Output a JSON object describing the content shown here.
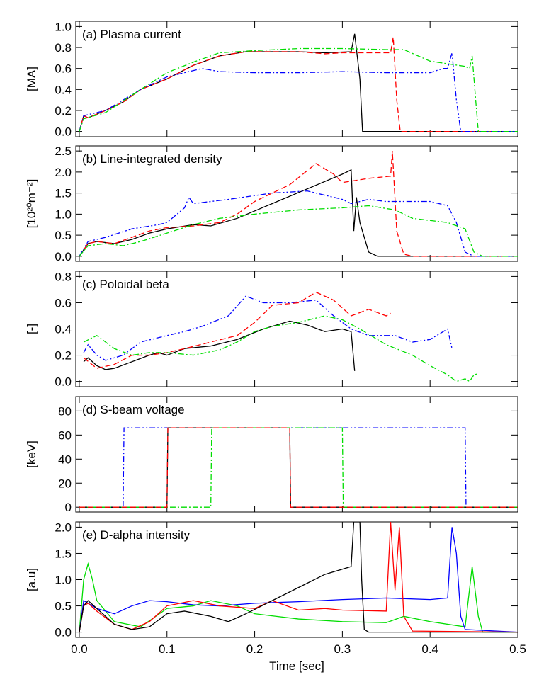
{
  "chart_data": [
    {
      "type": "line",
      "title": "(a) Plasma current",
      "ylabel": "[MA]",
      "xlim": [
        -0.004,
        0.5
      ],
      "xticks": [
        {
          "value": 0,
          "label": "0.0"
        },
        0.1,
        0.2,
        0.3,
        0.4,
        0.5
      ],
      "ylim": [
        -0.05,
        1.05
      ],
      "yticks": [
        {
          "value": 0,
          "label": "0.0"
        },
        0.2,
        0.4,
        0.6,
        0.8,
        {
          "value": 1,
          "label": "1.0"
        }
      ],
      "series": [
        {
          "color": "#000000",
          "style": "solid",
          "x": [
            0,
            0.005,
            0.01,
            0.03,
            0.05,
            0.07,
            0.1,
            0.13,
            0.16,
            0.19,
            0.22,
            0.25,
            0.28,
            0.31,
            0.314,
            0.32,
            0.323,
            0.33,
            0.5
          ],
          "values": [
            0,
            0.15,
            0.13,
            0.2,
            0.28,
            0.4,
            0.5,
            0.63,
            0.72,
            0.76,
            0.76,
            0.76,
            0.75,
            0.76,
            0.93,
            0.5,
            0,
            0,
            0
          ]
        },
        {
          "color": "#ff0000",
          "style": "dashed",
          "x": [
            0,
            0.005,
            0.01,
            0.03,
            0.05,
            0.07,
            0.1,
            0.13,
            0.16,
            0.19,
            0.22,
            0.25,
            0.28,
            0.3,
            0.355,
            0.358,
            0.362,
            0.366,
            0.5
          ],
          "values": [
            0,
            0.15,
            0.13,
            0.2,
            0.28,
            0.4,
            0.5,
            0.63,
            0.72,
            0.76,
            0.76,
            0.76,
            0.74,
            0.75,
            0.75,
            0.9,
            0.3,
            0,
            0
          ]
        },
        {
          "color": "#0000ff",
          "style": "dashdotdot",
          "x": [
            0,
            0.005,
            0.03,
            0.07,
            0.1,
            0.14,
            0.16,
            0.2,
            0.25,
            0.3,
            0.35,
            0.4,
            0.415,
            0.42,
            0.425,
            0.43,
            0.435,
            0.5
          ],
          "values": [
            0,
            0.15,
            0.2,
            0.4,
            0.52,
            0.6,
            0.57,
            0.56,
            0.56,
            0.57,
            0.56,
            0.56,
            0.6,
            0.6,
            0.75,
            0.3,
            0,
            0
          ]
        },
        {
          "color": "#00dd00",
          "style": "dashdot",
          "x": [
            0,
            0.005,
            0.03,
            0.07,
            0.1,
            0.13,
            0.16,
            0.2,
            0.25,
            0.3,
            0.35,
            0.37,
            0.4,
            0.44,
            0.445,
            0.448,
            0.452,
            0.455,
            0.5
          ],
          "values": [
            0,
            0.12,
            0.18,
            0.4,
            0.56,
            0.66,
            0.75,
            0.77,
            0.79,
            0.79,
            0.78,
            0.78,
            0.67,
            0.62,
            0.6,
            0.72,
            0.3,
            0,
            0
          ]
        }
      ]
    },
    {
      "type": "line",
      "title": "(b) Line-integrated density",
      "ylabel": "[10²⁰m⁻²]",
      "xlim": [
        -0.004,
        0.5
      ],
      "xticks": [
        {
          "value": 0,
          "label": "0.0"
        },
        0.1,
        0.2,
        0.3,
        0.4,
        0.5
      ],
      "ylim": [
        -0.12,
        2.62
      ],
      "yticks": [
        {
          "value": 0,
          "label": "0.0"
        },
        0.5,
        {
          "value": 1,
          "label": "1.0"
        },
        1.5,
        {
          "value": 2,
          "label": "2.0"
        },
        2.5
      ],
      "series": [
        {
          "color": "#000000",
          "style": "solid",
          "x": [
            0,
            0.01,
            0.02,
            0.04,
            0.06,
            0.08,
            0.1,
            0.13,
            0.15,
            0.18,
            0.22,
            0.26,
            0.3,
            0.31,
            0.313,
            0.316,
            0.32,
            0.33,
            0.34,
            0.5
          ],
          "values": [
            0,
            0.3,
            0.35,
            0.3,
            0.4,
            0.55,
            0.65,
            0.75,
            0.72,
            0.9,
            1.25,
            1.6,
            1.95,
            2.05,
            0.6,
            1.4,
            0.8,
            0.1,
            0,
            0
          ]
        },
        {
          "color": "#ff0000",
          "style": "dashed",
          "x": [
            0,
            0.01,
            0.02,
            0.04,
            0.06,
            0.08,
            0.1,
            0.13,
            0.16,
            0.18,
            0.2,
            0.24,
            0.27,
            0.29,
            0.3,
            0.33,
            0.355,
            0.357,
            0.362,
            0.37,
            0.38,
            0.5
          ],
          "values": [
            0,
            0.3,
            0.35,
            0.3,
            0.45,
            0.6,
            0.68,
            0.72,
            0.8,
            1,
            1.3,
            1.7,
            2.2,
            1.95,
            1.75,
            1.85,
            1.9,
            2.5,
            0.6,
            0.05,
            0,
            0
          ]
        },
        {
          "color": "#0000ff",
          "style": "dashdotdot",
          "x": [
            0,
            0.01,
            0.03,
            0.06,
            0.09,
            0.1,
            0.12,
            0.125,
            0.13,
            0.17,
            0.22,
            0.26,
            0.28,
            0.3,
            0.31,
            0.33,
            0.35,
            0.4,
            0.42,
            0.43,
            0.44,
            0.45,
            0.5
          ],
          "values": [
            0,
            0.35,
            0.45,
            0.65,
            0.75,
            0.8,
            1.15,
            1.4,
            1.25,
            1.35,
            1.5,
            1.55,
            1.45,
            1.35,
            1.25,
            1.35,
            1.3,
            1.3,
            1.2,
            0.8,
            0.1,
            0,
            0
          ]
        },
        {
          "color": "#00dd00",
          "style": "dashdot",
          "x": [
            0,
            0.01,
            0.03,
            0.05,
            0.07,
            0.1,
            0.13,
            0.16,
            0.2,
            0.25,
            0.3,
            0.33,
            0.36,
            0.38,
            0.42,
            0.44,
            0.45,
            0.46,
            0.5
          ],
          "values": [
            0,
            0.25,
            0.3,
            0.25,
            0.35,
            0.55,
            0.75,
            0.9,
            1,
            1.1,
            1.15,
            1.2,
            1.1,
            0.9,
            0.8,
            0.65,
            0.1,
            0,
            0
          ]
        }
      ]
    },
    {
      "type": "line",
      "title": "(c) Poloidal beta",
      "ylabel": "[-]",
      "xlim": [
        -0.004,
        0.5
      ],
      "xticks": [
        {
          "value": 0,
          "label": "0.0"
        },
        0.1,
        0.2,
        0.3,
        0.4,
        0.5
      ],
      "ylim": [
        -0.04,
        0.84
      ],
      "yticks": [
        {
          "value": 0,
          "label": "0.0"
        },
        0.2,
        0.4,
        0.6,
        0.8
      ],
      "series": [
        {
          "color": "#000000",
          "style": "solid",
          "x": [
            0.005,
            0.01,
            0.02,
            0.03,
            0.04,
            0.06,
            0.08,
            0.09,
            0.1,
            0.12,
            0.15,
            0.18,
            0.21,
            0.24,
            0.26,
            0.28,
            0.3,
            0.31,
            0.314
          ],
          "values": [
            0.15,
            0.18,
            0.12,
            0.09,
            0.1,
            0.15,
            0.2,
            0.22,
            0.2,
            0.25,
            0.27,
            0.32,
            0.4,
            0.46,
            0.43,
            0.38,
            0.4,
            0.38,
            0.08
          ]
        },
        {
          "color": "#ff0000",
          "style": "dashed",
          "x": [
            0.005,
            0.02,
            0.04,
            0.06,
            0.08,
            0.1,
            0.12,
            0.15,
            0.18,
            0.2,
            0.22,
            0.25,
            0.27,
            0.29,
            0.31,
            0.33,
            0.35,
            0.355
          ],
          "values": [
            0.18,
            0.1,
            0.13,
            0.2,
            0.2,
            0.22,
            0.25,
            0.3,
            0.35,
            0.45,
            0.58,
            0.6,
            0.68,
            0.62,
            0.5,
            0.55,
            0.5,
            0.52
          ]
        },
        {
          "color": "#0000ff",
          "style": "dashdotdot",
          "x": [
            0.005,
            0.01,
            0.02,
            0.03,
            0.05,
            0.07,
            0.1,
            0.12,
            0.14,
            0.17,
            0.19,
            0.21,
            0.24,
            0.27,
            0.29,
            0.31,
            0.33,
            0.36,
            0.38,
            0.4,
            0.42,
            0.425
          ],
          "values": [
            0.22,
            0.28,
            0.2,
            0.16,
            0.2,
            0.3,
            0.35,
            0.38,
            0.42,
            0.5,
            0.65,
            0.6,
            0.6,
            0.62,
            0.5,
            0.4,
            0.35,
            0.35,
            0.3,
            0.32,
            0.4,
            0.25
          ]
        },
        {
          "color": "#00dd00",
          "style": "dashdot",
          "x": [
            0.005,
            0.02,
            0.04,
            0.06,
            0.08,
            0.1,
            0.13,
            0.16,
            0.18,
            0.2,
            0.22,
            0.25,
            0.28,
            0.3,
            0.32,
            0.35,
            0.38,
            0.4,
            0.42,
            0.43,
            0.44,
            0.445,
            0.45,
            0.455
          ],
          "values": [
            0.3,
            0.35,
            0.25,
            0.2,
            0.22,
            0.22,
            0.2,
            0.24,
            0.3,
            0.38,
            0.42,
            0.45,
            0.5,
            0.47,
            0.4,
            0.28,
            0.2,
            0.12,
            0.05,
            0,
            0.02,
            0,
            0.05,
            0.06
          ]
        }
      ]
    },
    {
      "type": "line",
      "title": "(d) S-beam voltage",
      "ylabel": "[keV]",
      "xlim": [
        -0.004,
        0.5
      ],
      "xticks": [
        {
          "value": 0,
          "label": "0.0"
        },
        0.1,
        0.2,
        0.3,
        0.4,
        0.5
      ],
      "ylim": [
        -4,
        92
      ],
      "yticks": [
        0,
        20,
        40,
        60,
        80
      ],
      "series": [
        {
          "color": "#0000ff",
          "style": "dashdotdot",
          "x": [
            0,
            0.05,
            0.051,
            0.44,
            0.441,
            0.5
          ],
          "values": [
            0,
            0,
            66,
            66,
            0,
            0
          ]
        },
        {
          "color": "#000000",
          "style": "solid",
          "x": [
            0,
            0.1,
            0.101,
            0.24,
            0.241,
            0.5
          ],
          "values": [
            0,
            0,
            66,
            66,
            0,
            0
          ]
        },
        {
          "color": "#00dd00",
          "style": "dashdot",
          "x": [
            0,
            0.15,
            0.151,
            0.3,
            0.301,
            0.5
          ],
          "values": [
            0,
            0,
            66,
            66,
            0,
            0
          ]
        },
        {
          "color": "#ff0000",
          "style": "dashed",
          "x": [
            0,
            0.1,
            0.101,
            0.24,
            0.241,
            0.5
          ],
          "values": [
            0,
            0,
            66,
            66,
            0,
            0
          ]
        }
      ]
    },
    {
      "type": "line",
      "title": "(e) D-alpha intensity",
      "ylabel": "[a.u]",
      "xlabel": "Time [sec]",
      "xlim": [
        -0.004,
        0.5
      ],
      "xticks": [
        {
          "value": 0,
          "label": "0.0"
        },
        0.1,
        0.2,
        0.3,
        0.4,
        0.5
      ],
      "ylim": [
        -0.1,
        2.1
      ],
      "yticks": [
        {
          "value": 0,
          "label": "0.0"
        },
        0.5,
        {
          "value": 1,
          "label": "1.0"
        },
        1.5,
        {
          "value": 2,
          "label": "2.0"
        }
      ],
      "series": [
        {
          "color": "#00dd00",
          "style": "solid",
          "x": [
            0,
            0.005,
            0.01,
            0.015,
            0.02,
            0.04,
            0.07,
            0.1,
            0.13,
            0.15,
            0.18,
            0.2,
            0.25,
            0.3,
            0.35,
            0.37,
            0.4,
            0.44,
            0.448,
            0.455,
            0.46,
            0.5
          ],
          "values": [
            0,
            1,
            1.3,
            1,
            0.6,
            0.2,
            0.1,
            0.45,
            0.5,
            0.6,
            0.5,
            0.35,
            0.25,
            0.2,
            0.18,
            0.3,
            0.2,
            0.1,
            1.25,
            0.3,
            0,
            0
          ]
        },
        {
          "color": "#0000ff",
          "style": "solid",
          "x": [
            0,
            0.005,
            0.01,
            0.02,
            0.04,
            0.06,
            0.08,
            0.1,
            0.13,
            0.16,
            0.2,
            0.25,
            0.3,
            0.35,
            0.4,
            0.42,
            0.425,
            0.43,
            0.435,
            0.44,
            0.5
          ],
          "values": [
            0,
            0.6,
            0.55,
            0.45,
            0.35,
            0.5,
            0.6,
            0.58,
            0.52,
            0.5,
            0.55,
            0.58,
            0.62,
            0.65,
            0.62,
            0.65,
            2,
            1.5,
            0.3,
            0.05,
            0
          ]
        },
        {
          "color": "#ff0000",
          "style": "solid",
          "x": [
            0,
            0.005,
            0.01,
            0.02,
            0.04,
            0.06,
            0.08,
            0.1,
            0.13,
            0.16,
            0.2,
            0.22,
            0.25,
            0.28,
            0.3,
            0.35,
            0.355,
            0.36,
            0.365,
            0.37,
            0.38,
            0.5
          ],
          "values": [
            0,
            0.5,
            0.55,
            0.4,
            0.15,
            0.05,
            0.2,
            0.5,
            0.6,
            0.5,
            0.45,
            0.6,
            0.42,
            0.45,
            0.42,
            0.4,
            2.1,
            0.8,
            2,
            0.3,
            0.02,
            0
          ]
        },
        {
          "color": "#000000",
          "style": "solid",
          "x": [
            0,
            0.005,
            0.01,
            0.02,
            0.04,
            0.06,
            0.08,
            0.1,
            0.12,
            0.15,
            0.17,
            0.19,
            0.22,
            0.25,
            0.28,
            0.31,
            0.313,
            0.32,
            0.322,
            0.325,
            0.33,
            0.5
          ],
          "values": [
            0,
            0.5,
            0.6,
            0.45,
            0.15,
            0.05,
            0.1,
            0.35,
            0.4,
            0.3,
            0.2,
            0.35,
            0.6,
            0.85,
            1.1,
            1.25,
            2.1,
            2.1,
            1,
            0.05,
            0,
            0
          ]
        }
      ]
    }
  ]
}
